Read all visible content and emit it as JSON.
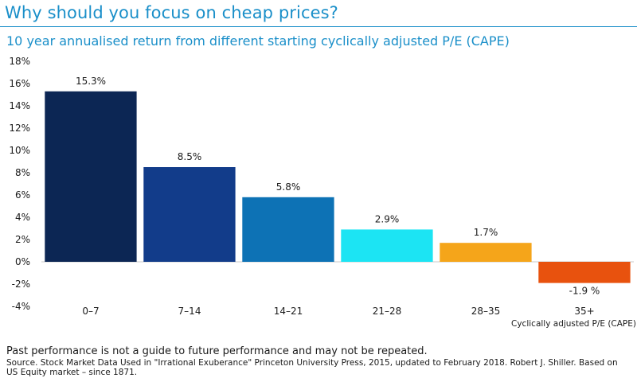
{
  "header": {
    "title": "Why should you focus on cheap prices?"
  },
  "chart_data": {
    "type": "bar",
    "title": "10 year annualised return from different starting cyclically adjusted P/E (CAPE)",
    "xlabel": "Cyclically adjusted P/E (CAPE)",
    "ylabel": "",
    "categories": [
      "0–7",
      "7–14",
      "14–21",
      "21–28",
      "28–35",
      "35+"
    ],
    "values": [
      15.3,
      8.5,
      5.8,
      2.9,
      1.7,
      -1.9
    ],
    "value_labels": [
      "15.3%",
      "8.5%",
      "5.8%",
      "2.9%",
      "1.7%",
      "-1.9 %"
    ],
    "bar_colors": [
      "#0c2654",
      "#123c8a",
      "#0d72b5",
      "#1ce4f3",
      "#f5a51a",
      "#e8520e"
    ],
    "ylim": [
      -4,
      18
    ],
    "yticks": [
      -4,
      -2,
      0,
      2,
      4,
      6,
      8,
      10,
      12,
      14,
      16,
      18
    ],
    "ytick_labels": [
      "-4%",
      "-2%",
      "0%",
      "2%",
      "4%",
      "6%",
      "8%",
      "10%",
      "12%",
      "14%",
      "16%",
      "18%"
    ],
    "grid": false,
    "legend": "none"
  },
  "footer": {
    "note": "Past performance is not a guide to future performance and may not be repeated.",
    "source": "Source. Stock Market Data Used in \"Irrational Exuberance\" Princeton University Press, 2015, updated to February 2018. Robert J. Shiller. Based on US Equity market – since 1871."
  },
  "colors": {
    "accent": "#1a8fc9",
    "zero_line": "#c8c8c8"
  }
}
